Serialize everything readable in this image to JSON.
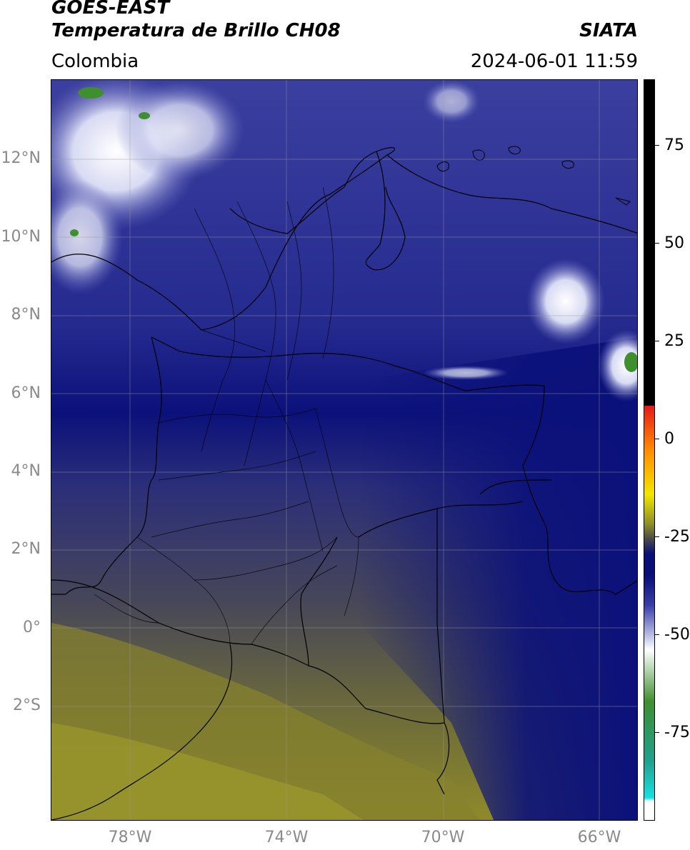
{
  "header": {
    "title_line1": "GOES-EAST",
    "title_line2": "Temperatura de Brillo CH08",
    "region": "Colombia",
    "source": "SIATA",
    "datetime": "2024-06-01 11:59"
  },
  "map": {
    "lat_ticks": [
      "12°N",
      "10°N",
      "8°N",
      "6°N",
      "4°N",
      "2°N",
      "0°",
      "2°S"
    ],
    "lon_ticks": [
      "78°W",
      "74°W",
      "70°W",
      "66°W"
    ],
    "extent": {
      "lon": [
        -80,
        -65
      ],
      "lat": [
        -5,
        14
      ]
    },
    "gridlines": true
  },
  "colorbar": {
    "ticks": [
      "75",
      "50",
      "25",
      "0",
      "-25",
      "-50",
      "-75"
    ],
    "range": [
      -100,
      90
    ],
    "colors": {
      "black_top": "#000000",
      "red": "#e41a1c",
      "orange": "#ff8c00",
      "yellow": "#f2e600",
      "olive": "#8e8e2a",
      "gray": "#4a4a4a",
      "navy": "#0a0f78",
      "blue": "#3a3fa8",
      "lavender": "#b9bde3",
      "white": "#ffffff",
      "green": "#3f8f2f",
      "teal": "#21a08f",
      "cyan": "#18e0e0"
    }
  }
}
